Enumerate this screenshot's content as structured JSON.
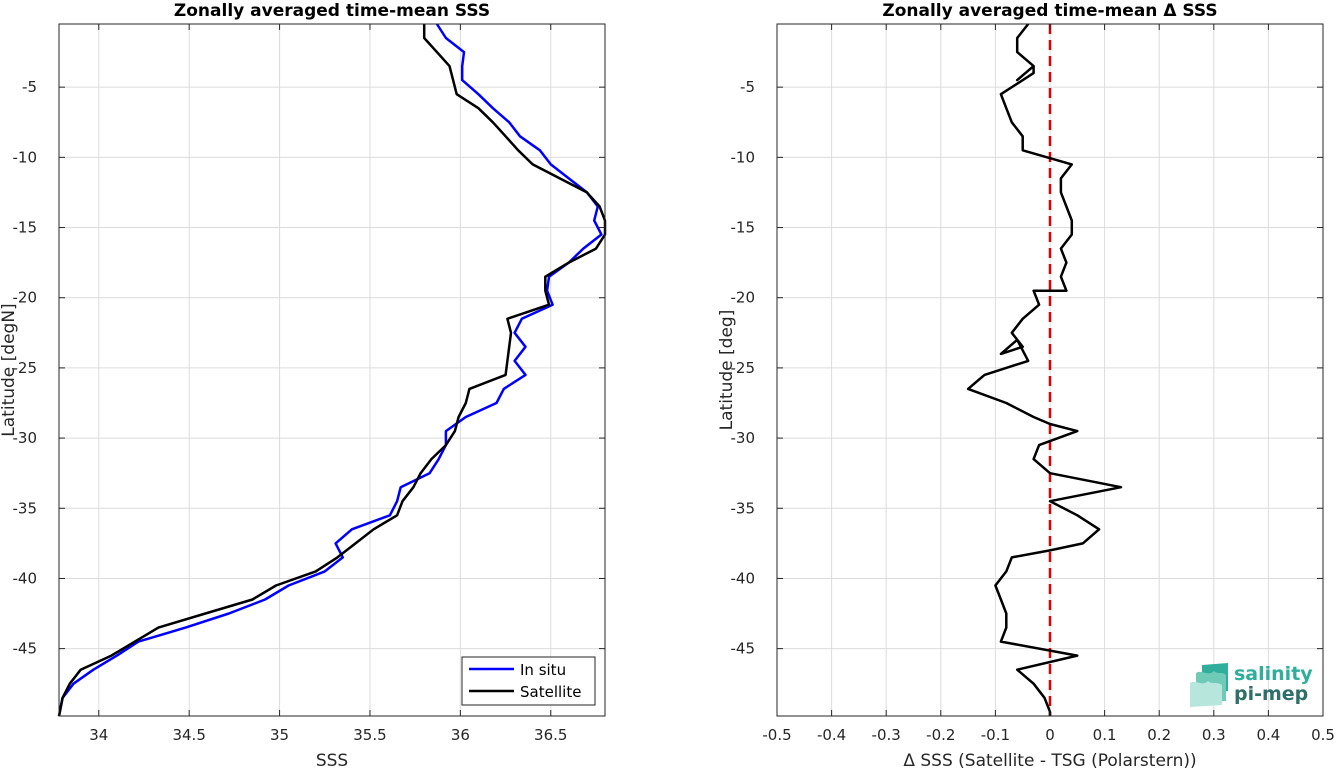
{
  "logo": {
    "line1": "salinity",
    "line2": "pi-mep"
  },
  "chart_data": [
    {
      "type": "line",
      "title": "Zonally averaged time-mean SSS",
      "xlabel": "SSS",
      "ylabel": "Latitude [degN]",
      "xlim": [
        33.78,
        36.8
      ],
      "ylim": [
        -49.8,
        -0.5
      ],
      "xticks": [
        34,
        34.5,
        35,
        35.5,
        36,
        36.5
      ],
      "yticks": [
        -45,
        -40,
        -35,
        -30,
        -25,
        -20,
        -15,
        -10,
        -5
      ],
      "grid": true,
      "legend": {
        "placement": "bottom-right",
        "entries": [
          "In situ",
          "Satellite"
        ]
      },
      "series": [
        {
          "name": "In situ",
          "color": "#0000ff",
          "points": [
            [
              35.87,
              -0.5
            ],
            [
              35.92,
              -1.5
            ],
            [
              36.02,
              -2.5
            ],
            [
              36.01,
              -3.5
            ],
            [
              36.01,
              -4.5
            ],
            [
              36.1,
              -5.5
            ],
            [
              36.18,
              -6.5
            ],
            [
              36.27,
              -7.5
            ],
            [
              36.33,
              -8.5
            ],
            [
              36.44,
              -9.5
            ],
            [
              36.5,
              -10.5
            ],
            [
              36.6,
              -11.5
            ],
            [
              36.7,
              -12.5
            ],
            [
              36.76,
              -13.5
            ],
            [
              36.74,
              -14.5
            ],
            [
              36.78,
              -15.5
            ],
            [
              36.68,
              -16.5
            ],
            [
              36.6,
              -17.5
            ],
            [
              36.49,
              -18.5
            ],
            [
              36.48,
              -19.5
            ],
            [
              36.51,
              -20.5
            ],
            [
              36.34,
              -21.5
            ],
            [
              36.3,
              -22.5
            ],
            [
              36.36,
              -23.5
            ],
            [
              36.3,
              -24.5
            ],
            [
              36.36,
              -25.5
            ],
            [
              36.24,
              -26.5
            ],
            [
              36.2,
              -27.5
            ],
            [
              36.03,
              -28.5
            ],
            [
              35.92,
              -29.5
            ],
            [
              35.92,
              -30.5
            ],
            [
              35.88,
              -31.5
            ],
            [
              35.83,
              -32.5
            ],
            [
              35.67,
              -33.5
            ],
            [
              35.65,
              -34.5
            ],
            [
              35.61,
              -35.5
            ],
            [
              35.4,
              -36.5
            ],
            [
              35.31,
              -37.5
            ],
            [
              35.35,
              -38.5
            ],
            [
              35.25,
              -39.5
            ],
            [
              35.05,
              -40.5
            ],
            [
              34.92,
              -41.5
            ],
            [
              34.72,
              -42.5
            ],
            [
              34.48,
              -43.5
            ],
            [
              34.22,
              -44.5
            ],
            [
              34.1,
              -45.5
            ],
            [
              33.97,
              -46.5
            ],
            [
              33.86,
              -47.5
            ],
            [
              33.8,
              -48.5
            ],
            [
              33.78,
              -49.8
            ]
          ]
        },
        {
          "name": "Satellite",
          "color": "#000000",
          "points": [
            [
              35.8,
              -0.5
            ],
            [
              35.8,
              -1.5
            ],
            [
              35.87,
              -2.5
            ],
            [
              35.94,
              -3.5
            ],
            [
              35.96,
              -4.5
            ],
            [
              35.98,
              -5.5
            ],
            [
              36.1,
              -6.5
            ],
            [
              36.18,
              -7.5
            ],
            [
              36.25,
              -8.5
            ],
            [
              36.32,
              -9.5
            ],
            [
              36.4,
              -10.5
            ],
            [
              36.55,
              -11.5
            ],
            [
              36.7,
              -12.5
            ],
            [
              36.77,
              -13.5
            ],
            [
              36.8,
              -14.5
            ],
            [
              36.8,
              -15.5
            ],
            [
              36.75,
              -16.5
            ],
            [
              36.6,
              -17.5
            ],
            [
              36.47,
              -18.5
            ],
            [
              36.47,
              -19.5
            ],
            [
              36.49,
              -20.5
            ],
            [
              36.26,
              -21.5
            ],
            [
              36.28,
              -22.5
            ],
            [
              36.27,
              -23.5
            ],
            [
              36.26,
              -24.5
            ],
            [
              36.25,
              -25.5
            ],
            [
              36.05,
              -26.5
            ],
            [
              36.03,
              -27.5
            ],
            [
              35.99,
              -28.5
            ],
            [
              35.97,
              -29.5
            ],
            [
              35.92,
              -30.5
            ],
            [
              35.84,
              -31.5
            ],
            [
              35.78,
              -32.5
            ],
            [
              35.74,
              -33.5
            ],
            [
              35.68,
              -34.5
            ],
            [
              35.65,
              -35.5
            ],
            [
              35.52,
              -36.5
            ],
            [
              35.42,
              -37.5
            ],
            [
              35.32,
              -38.5
            ],
            [
              35.2,
              -39.5
            ],
            [
              34.98,
              -40.5
            ],
            [
              34.85,
              -41.5
            ],
            [
              34.59,
              -42.5
            ],
            [
              34.33,
              -43.5
            ],
            [
              34.2,
              -44.5
            ],
            [
              34.07,
              -45.5
            ],
            [
              33.9,
              -46.5
            ],
            [
              33.84,
              -47.5
            ],
            [
              33.8,
              -48.5
            ],
            [
              33.78,
              -49.8
            ]
          ]
        }
      ]
    },
    {
      "type": "line",
      "title": "Zonally averaged time-mean Δ SSS",
      "xlabel": "Δ SSS (Satellite - TSG (Polarstern))",
      "ylabel": "Latitude [deg]",
      "xlim": [
        -0.5,
        0.5
      ],
      "ylim": [
        -49.8,
        -0.5
      ],
      "xticks": [
        -0.5,
        -0.4,
        -0.3,
        -0.2,
        -0.1,
        0,
        0.1,
        0.2,
        0.3,
        0.4,
        0.5
      ],
      "xticklabels": [
        "-0.5",
        "-0.4",
        "-0.3",
        "-0.2",
        "-0.1",
        "0",
        "0.1",
        "0.2",
        "0.3",
        "0.4",
        "0.5"
      ],
      "yticks": [
        -45,
        -40,
        -35,
        -30,
        -25,
        -20,
        -15,
        -10,
        -5
      ],
      "grid": true,
      "reference_line": {
        "x": 0,
        "color": "#e00000",
        "style": "dashed"
      },
      "series": [
        {
          "color": "#000000",
          "points": [
            [
              -0.04,
              -0.5
            ],
            [
              -0.06,
              -1.5
            ],
            [
              -0.06,
              -2.5
            ],
            [
              -0.03,
              -3.5
            ],
            [
              -0.06,
              -4.5
            ],
            [
              -0.03,
              -3.5
            ],
            [
              -0.03,
              -4.0
            ],
            [
              -0.09,
              -5.5
            ],
            [
              -0.08,
              -6.5
            ],
            [
              -0.07,
              -7.5
            ],
            [
              -0.05,
              -8.5
            ],
            [
              -0.05,
              -9.0
            ],
            [
              -0.05,
              -9.5
            ],
            [
              0.04,
              -10.5
            ],
            [
              0.02,
              -11.5
            ],
            [
              0.02,
              -12.5
            ],
            [
              0.03,
              -13.5
            ],
            [
              0.04,
              -14.5
            ],
            [
              0.04,
              -15.5
            ],
            [
              0.02,
              -16.5
            ],
            [
              0.03,
              -17.5
            ],
            [
              0.02,
              -18.5
            ],
            [
              0.03,
              -19.5
            ],
            [
              -0.03,
              -19.5
            ],
            [
              -0.02,
              -20.5
            ],
            [
              -0.05,
              -21.5
            ],
            [
              -0.07,
              -22.5
            ],
            [
              -0.05,
              -23.5
            ],
            [
              -0.09,
              -24.0
            ],
            [
              -0.06,
              -23.0
            ],
            [
              -0.04,
              -24.5
            ],
            [
              -0.12,
              -25.5
            ],
            [
              -0.15,
              -26.5
            ],
            [
              -0.08,
              -27.5
            ],
            [
              -0.03,
              -28.5
            ],
            [
              0.0,
              -29.0
            ],
            [
              0.05,
              -29.5
            ],
            [
              -0.02,
              -30.5
            ],
            [
              -0.03,
              -31.5
            ],
            [
              0.0,
              -32.5
            ],
            [
              0.13,
              -33.5
            ],
            [
              0.0,
              -34.5
            ],
            [
              0.05,
              -35.5
            ],
            [
              0.09,
              -36.5
            ],
            [
              0.06,
              -37.5
            ],
            [
              0.0,
              -38.0
            ],
            [
              -0.07,
              -38.5
            ],
            [
              -0.08,
              -39.5
            ],
            [
              -0.1,
              -40.5
            ],
            [
              -0.09,
              -41.5
            ],
            [
              -0.08,
              -42.5
            ],
            [
              -0.08,
              -43.5
            ],
            [
              -0.09,
              -44.5
            ],
            [
              0.05,
              -45.5
            ],
            [
              -0.06,
              -46.5
            ],
            [
              -0.03,
              -47.5
            ],
            [
              -0.01,
              -48.5
            ],
            [
              0.0,
              -49.5
            ],
            [
              0.0,
              -49.8
            ]
          ]
        }
      ]
    }
  ]
}
